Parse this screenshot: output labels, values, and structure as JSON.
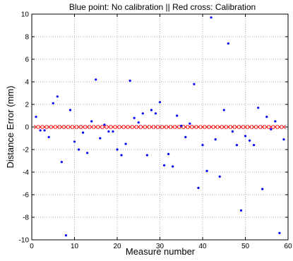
{
  "chart_data": {
    "type": "scatter",
    "title": "Blue point: No calibration || Red cross: Calibration",
    "xlabel": "Measure number",
    "ylabel": "Distance Error (mm)",
    "xlim": [
      0,
      60
    ],
    "ylim": [
      -10,
      10
    ],
    "x_ticks": [
      0,
      10,
      20,
      30,
      40,
      50,
      60
    ],
    "y_ticks": [
      -10,
      -8,
      -6,
      -4,
      -2,
      0,
      2,
      4,
      6,
      8,
      10
    ],
    "grid": true,
    "series": [
      {
        "marker": "point",
        "color": "#0000ff",
        "x": [
          1,
          2,
          3,
          4,
          5,
          6,
          7,
          8,
          9,
          10,
          11,
          12,
          13,
          14,
          15,
          16,
          17,
          18,
          19,
          20,
          21,
          22,
          23,
          24,
          25,
          26,
          27,
          28,
          29,
          30,
          31,
          32,
          33,
          34,
          35,
          36,
          37,
          38,
          39,
          40,
          41,
          42,
          43,
          44,
          45,
          46,
          47,
          48,
          49,
          50,
          51,
          52,
          53,
          54,
          55,
          56,
          57,
          58,
          59
        ],
        "y": [
          0.9,
          -0.3,
          -0.3,
          -0.9,
          2.1,
          2.7,
          -3.1,
          -9.6,
          1.5,
          -1.3,
          -2.0,
          -0.5,
          -2.3,
          0.5,
          4.2,
          -1.0,
          0.2,
          -0.4,
          -0.4,
          -2.0,
          -2.5,
          -1.5,
          4.1,
          0.8,
          0.4,
          1.2,
          -2.5,
          1.5,
          1.2,
          2.2,
          -3.4,
          -2.4,
          -3.5,
          1.0,
          0.1,
          -0.9,
          0.3,
          3.8,
          -5.4,
          -1.6,
          -3.9,
          9.7,
          -1.1,
          -4.4,
          1.5,
          7.4,
          -0.4,
          -1.6,
          -7.4,
          -0.8,
          -1.2,
          -1.6,
          1.7,
          -5.5,
          0.9,
          -0.2,
          0.5,
          -9.4,
          -1.1
        ]
      },
      {
        "marker": "cross",
        "color": "#ff0000",
        "x": [
          1,
          2,
          3,
          4,
          5,
          6,
          7,
          8,
          9,
          10,
          11,
          12,
          13,
          14,
          15,
          16,
          17,
          18,
          19,
          20,
          21,
          22,
          23,
          24,
          25,
          26,
          27,
          28,
          29,
          30,
          31,
          32,
          33,
          34,
          35,
          36,
          37,
          38,
          39,
          40,
          41,
          42,
          43,
          44,
          45,
          46,
          47,
          48,
          49,
          50,
          51,
          52,
          53,
          54,
          55,
          56,
          57,
          58,
          59
        ],
        "y": [
          0,
          0,
          0,
          0,
          0,
          0,
          0,
          0,
          0,
          0,
          0,
          0,
          0,
          0,
          0,
          0,
          0,
          0,
          0,
          0,
          0,
          0,
          0,
          0,
          0,
          0,
          0,
          0,
          0,
          0,
          0,
          0,
          0,
          0,
          0,
          0,
          0,
          0,
          0,
          0,
          0,
          0,
          0,
          0,
          0,
          0,
          0,
          0,
          0,
          0,
          0,
          0,
          0,
          0,
          0,
          0,
          0,
          0,
          0
        ]
      }
    ]
  }
}
